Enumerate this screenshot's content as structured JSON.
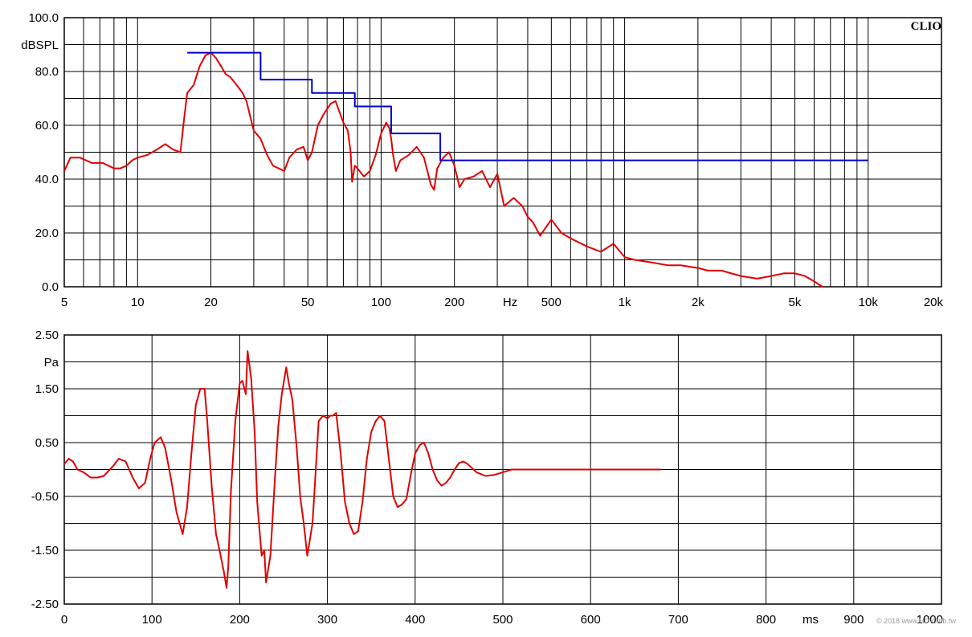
{
  "brand": "CLIO",
  "watermark": "© 2018 www.HD-Club.tw",
  "colors": {
    "measured": "#e00000",
    "limit": "#0000cc",
    "grid": "#000000",
    "background": "#ffffff"
  },
  "chart_data": [
    {
      "type": "line",
      "name": "frequency-response",
      "xscale": "log",
      "xlim": [
        5,
        20000
      ],
      "ylim": [
        0,
        100
      ],
      "grid": true,
      "unit_label": "dBSPL",
      "x_unit_label": "Hz",
      "x_ticks": [
        {
          "v": 5,
          "label": "5"
        },
        {
          "v": 10,
          "label": "10"
        },
        {
          "v": 20,
          "label": "20"
        },
        {
          "v": 50,
          "label": "50"
        },
        {
          "v": 100,
          "label": "100"
        },
        {
          "v": 200,
          "label": "200"
        },
        {
          "v": 500,
          "label": "500"
        },
        {
          "v": 1000,
          "label": "1k"
        },
        {
          "v": 2000,
          "label": "2k"
        },
        {
          "v": 5000,
          "label": "5k"
        },
        {
          "v": 10000,
          "label": "10k"
        },
        {
          "v": 20000,
          "label": "20k"
        }
      ],
      "y_ticks": [
        {
          "v": 0,
          "label": "0.0"
        },
        {
          "v": 20,
          "label": "20.0"
        },
        {
          "v": 40,
          "label": "40.0"
        },
        {
          "v": 60,
          "label": "60.0"
        },
        {
          "v": 80,
          "label": "80.0"
        },
        {
          "v": 100,
          "label": "100.0"
        }
      ],
      "series": [
        {
          "role": "measured",
          "color": "#e00000",
          "x": [
            5,
            5.3,
            5.8,
            6.5,
            7.2,
            7.6,
            8,
            8.5,
            9,
            9.5,
            10,
            11,
            12,
            13,
            14,
            15,
            15.5,
            16,
            17,
            18,
            19,
            20,
            21,
            22,
            23,
            24,
            25,
            26,
            27,
            28,
            30,
            32,
            34,
            36,
            40,
            42,
            45,
            48,
            50,
            52,
            55,
            58,
            62,
            65,
            70,
            73,
            75,
            76,
            78,
            80,
            85,
            90,
            95,
            100,
            105,
            108,
            110,
            112,
            115,
            120,
            125,
            130,
            140,
            150,
            160,
            165,
            170,
            180,
            190,
            200,
            210,
            220,
            240,
            260,
            280,
            300,
            320,
            350,
            380,
            400,
            420,
            450,
            500,
            550,
            600,
            700,
            800,
            900,
            1000,
            1100,
            1300,
            1500,
            1700,
            2000,
            2200,
            2500,
            3000,
            3500,
            4000,
            4500,
            5000,
            5500,
            6000,
            6500
          ],
          "y": [
            43,
            48,
            48,
            46,
            46,
            45,
            44,
            44,
            45,
            47,
            48,
            49,
            51,
            53,
            51,
            50,
            62,
            72,
            75,
            82,
            86,
            87,
            85,
            82,
            79,
            78,
            76,
            74,
            72,
            69,
            58,
            55,
            49,
            45,
            43,
            48,
            51,
            52,
            47,
            50,
            60,
            64,
            68,
            69,
            61,
            58,
            50,
            39,
            45,
            44,
            41,
            43,
            49,
            57,
            61,
            59,
            55,
            49,
            43,
            47,
            48,
            49,
            52,
            48,
            38,
            36,
            44,
            48,
            50,
            45,
            37,
            40,
            41,
            43,
            37,
            42,
            30,
            33,
            30,
            26,
            24,
            19,
            25,
            20,
            18,
            15,
            13,
            16,
            11,
            10,
            9,
            8,
            8,
            7,
            6,
            6,
            4,
            3,
            4,
            5,
            5,
            4,
            2,
            0
          ]
        },
        {
          "role": "limit",
          "color": "#0000cc",
          "x": [
            16,
            32,
            32,
            52,
            52,
            78,
            78,
            110,
            110,
            175,
            175,
            10000
          ],
          "y": [
            87,
            87,
            77,
            77,
            72,
            72,
            67,
            67,
            57,
            57,
            47,
            47
          ]
        }
      ]
    },
    {
      "type": "line",
      "name": "step-response",
      "xscale": "linear",
      "xlim": [
        0,
        1000
      ],
      "ylim": [
        -2.5,
        2.5
      ],
      "grid": true,
      "unit_label": "Pa",
      "x_unit_label": "ms",
      "x_ticks": [
        {
          "v": 0,
          "label": "0"
        },
        {
          "v": 100,
          "label": "100"
        },
        {
          "v": 200,
          "label": "200"
        },
        {
          "v": 300,
          "label": "300"
        },
        {
          "v": 400,
          "label": "400"
        },
        {
          "v": 500,
          "label": "500"
        },
        {
          "v": 600,
          "label": "600"
        },
        {
          "v": 700,
          "label": "700"
        },
        {
          "v": 800,
          "label": "800"
        },
        {
          "v": 900,
          "label": "900"
        },
        {
          "v": 1000,
          "label": "1000"
        }
      ],
      "y_ticks": [
        {
          "v": 2.5,
          "label": "2.50"
        },
        {
          "v": 1.5,
          "label": "1.50"
        },
        {
          "v": 0.5,
          "label": "0.50"
        },
        {
          "v": -0.5,
          "label": "-0.50"
        },
        {
          "v": -1.5,
          "label": "-1.50"
        },
        {
          "v": -2.5,
          "label": "-2.50"
        }
      ],
      "series": [
        {
          "role": "measured",
          "color": "#e00000",
          "x": [
            0,
            5,
            10,
            15,
            22,
            30,
            38,
            45,
            55,
            62,
            70,
            78,
            85,
            92,
            98,
            103,
            110,
            115,
            122,
            128,
            135,
            140,
            145,
            150,
            155,
            160,
            163,
            168,
            173,
            177,
            182,
            185,
            187,
            190,
            195,
            200,
            203,
            207,
            209,
            213,
            217,
            220,
            225,
            228,
            230,
            235,
            240,
            244,
            248,
            253,
            256,
            260,
            265,
            269,
            273,
            277,
            280,
            283,
            286,
            290,
            295,
            300,
            303,
            306,
            310,
            315,
            320,
            325,
            330,
            335,
            340,
            345,
            350,
            355,
            360,
            365,
            370,
            375,
            380,
            385,
            390,
            395,
            400,
            405,
            410,
            415,
            420,
            425,
            430,
            435,
            440,
            445,
            450,
            455,
            460,
            470,
            480,
            490,
            500,
            510,
            520,
            530,
            540,
            600,
            680
          ],
          "y": [
            0.1,
            0.2,
            0.15,
            0.0,
            -0.05,
            -0.15,
            -0.15,
            -0.12,
            0.05,
            0.2,
            0.15,
            -0.15,
            -0.35,
            -0.25,
            0.2,
            0.5,
            0.6,
            0.4,
            -0.2,
            -0.8,
            -1.2,
            -0.7,
            0.3,
            1.2,
            1.5,
            1.5,
            0.9,
            -0.3,
            -1.2,
            -1.5,
            -1.9,
            -2.2,
            -1.8,
            -0.4,
            0.9,
            1.6,
            1.65,
            1.4,
            2.2,
            1.7,
            0.7,
            -0.6,
            -1.6,
            -1.5,
            -2.1,
            -1.6,
            -0.2,
            0.8,
            1.4,
            1.9,
            1.6,
            1.3,
            0.4,
            -0.5,
            -1.0,
            -1.6,
            -1.3,
            -1.0,
            -0.2,
            0.9,
            1.0,
            0.95,
            1.0,
            1.0,
            1.05,
            0.3,
            -0.6,
            -1.0,
            -1.2,
            -1.15,
            -0.6,
            0.2,
            0.7,
            0.9,
            1.0,
            0.9,
            0.2,
            -0.5,
            -0.7,
            -0.65,
            -0.55,
            -0.1,
            0.3,
            0.45,
            0.5,
            0.3,
            0.0,
            -0.2,
            -0.3,
            -0.25,
            -0.15,
            0.0,
            0.12,
            0.15,
            0.1,
            -0.05,
            -0.12,
            -0.1,
            -0.05,
            0.0,
            0.0,
            0.0,
            0.0,
            0.0,
            0.0
          ]
        }
      ]
    }
  ]
}
